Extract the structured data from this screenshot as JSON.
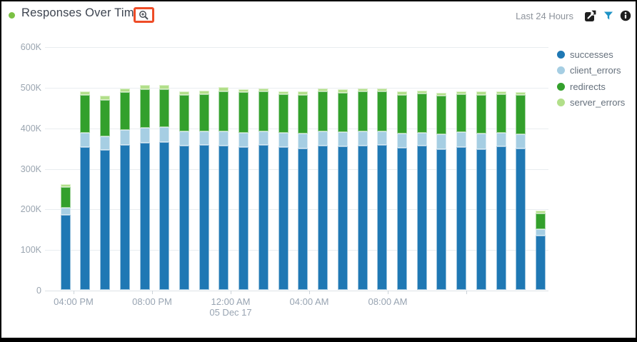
{
  "panel": {
    "title": "Responses Over Time",
    "time_range": "Last 24 Hours",
    "status_color": "#7bc144",
    "annotation_color": "#ee4c27"
  },
  "chart_data": {
    "type": "bar",
    "stacked": true,
    "title": "Responses Over Time",
    "xlabel": "",
    "ylabel": "",
    "ylim": [
      0,
      600000
    ],
    "grid": "horizontal",
    "legend_position": "right",
    "y_tick_labels": [
      "600K",
      "500K",
      "400K",
      "300K",
      "200K",
      "100K",
      "0"
    ],
    "x_tick_labels": [
      "04:00 PM",
      "08:00 PM",
      "12:00 AM",
      "04:00 AM",
      "08:00 AM",
      ""
    ],
    "x_date_label": "05 Dec 17",
    "x_date_under_tick": "12:00 AM",
    "series": [
      {
        "name": "successes",
        "color": "#1f78b4",
        "values": [
          185000,
          352000,
          345000,
          358000,
          362000,
          365000,
          355000,
          357000,
          356000,
          352000,
          357000,
          352000,
          349000,
          356000,
          353000,
          356000,
          357000,
          350000,
          355000,
          347000,
          352000,
          347000,
          354000,
          349000,
          133000
        ]
      },
      {
        "name": "client_errors",
        "color": "#a6cee3",
        "values": [
          18000,
          36000,
          33000,
          36000,
          38000,
          36000,
          36000,
          34000,
          34000,
          35000,
          33000,
          35000,
          37000,
          34000,
          36000,
          34000,
          33000,
          36000,
          32000,
          37000,
          37000,
          39000,
          33000,
          35000,
          17000
        ]
      },
      {
        "name": "redirects",
        "color": "#33a02c",
        "values": [
          50000,
          92000,
          90000,
          94000,
          95000,
          94000,
          90000,
          91000,
          100000,
          100000,
          100000,
          96000,
          94000,
          99000,
          97000,
          99000,
          100000,
          94000,
          97000,
          94000,
          93000,
          94000,
          96000,
          96000,
          39000
        ]
      },
      {
        "name": "server_errors",
        "color": "#b2df8a",
        "values": [
          7000,
          10000,
          10000,
          9000,
          10000,
          10000,
          9000,
          9000,
          9000,
          7000,
          7000,
          7000,
          10000,
          8000,
          8000,
          7000,
          7000,
          9000,
          7000,
          8000,
          8000,
          9000,
          7000,
          7000,
          7000
        ]
      }
    ]
  }
}
